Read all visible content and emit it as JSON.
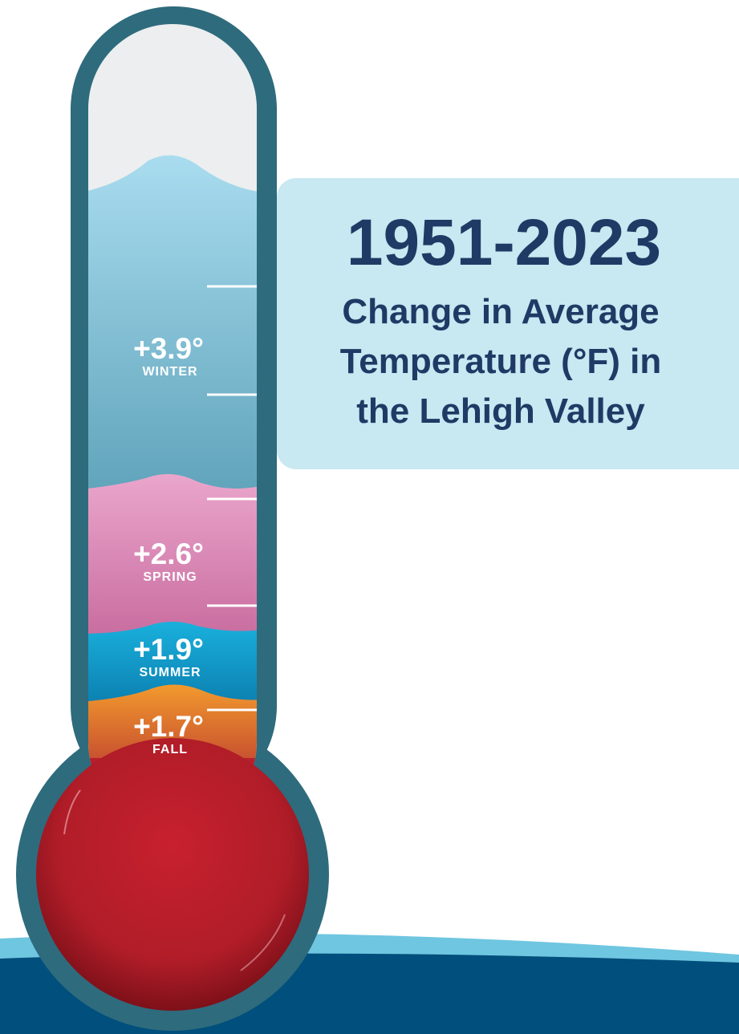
{
  "title": "1951-2023",
  "subtitle": [
    "Change in Average",
    "Temperature (°F) in",
    "the Lehigh Valley"
  ],
  "seasons": [
    {
      "value": "+3.9°",
      "name": "WINTER"
    },
    {
      "value": "+2.6°",
      "name": "SPRING"
    },
    {
      "value": "+1.9°",
      "name": "SUMMER"
    },
    {
      "value": "+1.7°",
      "name": "FALL"
    }
  ]
}
